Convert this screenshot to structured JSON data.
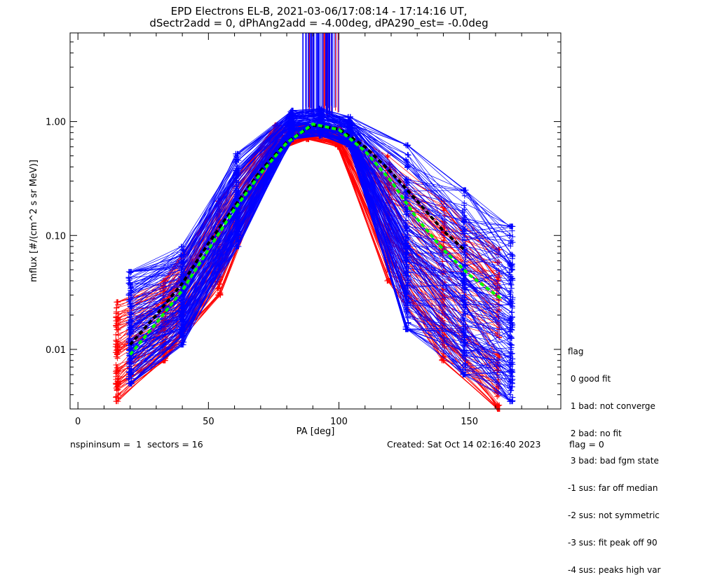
{
  "title_line1": "EPD Electrons EL-B, 2021-03-06/17:08:14 - 17:14:16 UT,",
  "title_line2": "dSectr2add = 0, dPhAng2add = -4.00deg, dPA290_est=  -0.0deg",
  "footer": {
    "left": "nspininsum =  1  sectors = 16",
    "created": "Created: Sat Oct 14 02:16:40 2023",
    "flag": "flag = 0"
  },
  "flag_legend": {
    "title": "flag",
    "items": [
      " 0 good fit",
      " 1 bad: not converge",
      " 2 bad: no fit",
      " 3 bad: bad fgm state",
      "-1 sus: far off median",
      "-2 sus: not symmetric",
      "-3 sus: fit peak off 90",
      "-4 sus: peaks high var"
    ]
  },
  "colors": {
    "blue": "#0000ff",
    "red": "#ff0000",
    "green": "#00ff00",
    "black": "#000000"
  },
  "chart_data": {
    "type": "line",
    "xlabel": "PA [deg]",
    "ylabel": "mflux [#/(cm^2 s sr MeV)]",
    "xlim": [
      -3,
      185
    ],
    "ylim": [
      0.003,
      6.0
    ],
    "yscale": "log",
    "x_ticks": [
      0,
      50,
      100,
      150
    ],
    "x_tick_labels": [
      "0",
      "50",
      "100",
      "150"
    ],
    "y_ticks": [
      0.01,
      0.1,
      1.0
    ],
    "y_tick_labels": [
      "0.01",
      "0.10",
      "1.00"
    ],
    "grid": false,
    "pa_bins": [
      20,
      40,
      61,
      82,
      93,
      104,
      126,
      148,
      166
    ],
    "series": [
      {
        "color": "#0000ff",
        "style": "line+cross",
        "x": [
          20,
          40,
          61,
          82,
          93,
          104,
          126,
          148,
          166
        ],
        "y_low": [
          0.005,
          0.011,
          0.08,
          0.7,
          0.75,
          0.6,
          0.015,
          0.006,
          0.0035
        ],
        "y_high": [
          0.048,
          0.08,
          0.52,
          1.25,
          1.3,
          1.1,
          0.62,
          0.25,
          0.12
        ]
      },
      {
        "color": "#ff0000",
        "style": "line+cross",
        "x": [
          15,
          33,
          54,
          76,
          88,
          100,
          119,
          140,
          161
        ],
        "y_low": [
          0.0035,
          0.008,
          0.03,
          0.55,
          0.7,
          0.6,
          0.04,
          0.008,
          0.003
        ],
        "y_high": [
          0.026,
          0.04,
          0.2,
          0.93,
          0.92,
          0.9,
          0.5,
          0.2,
          0.075
        ]
      },
      {
        "color": "#00ff00",
        "style": "dashed-fit",
        "x": [
          20,
          30,
          40,
          50,
          60,
          70,
          80,
          90,
          100,
          110,
          120,
          130,
          140,
          150,
          162
        ],
        "y": [
          0.009,
          0.017,
          0.033,
          0.075,
          0.17,
          0.35,
          0.65,
          0.95,
          0.85,
          0.55,
          0.3,
          0.14,
          0.075,
          0.045,
          0.028
        ]
      },
      {
        "color": "#000000",
        "style": "dashed-fit",
        "x": [
          20,
          30,
          40,
          50,
          60,
          70,
          80,
          90,
          100,
          110,
          120,
          130,
          140,
          148
        ],
        "y": [
          0.011,
          0.02,
          0.038,
          0.085,
          0.18,
          0.37,
          0.66,
          0.93,
          0.86,
          0.6,
          0.36,
          0.2,
          0.11,
          0.075
        ]
      }
    ],
    "vertical_spikes": {
      "x_range": [
        86,
        100
      ],
      "y_from": 1.1,
      "to_top": true
    }
  }
}
